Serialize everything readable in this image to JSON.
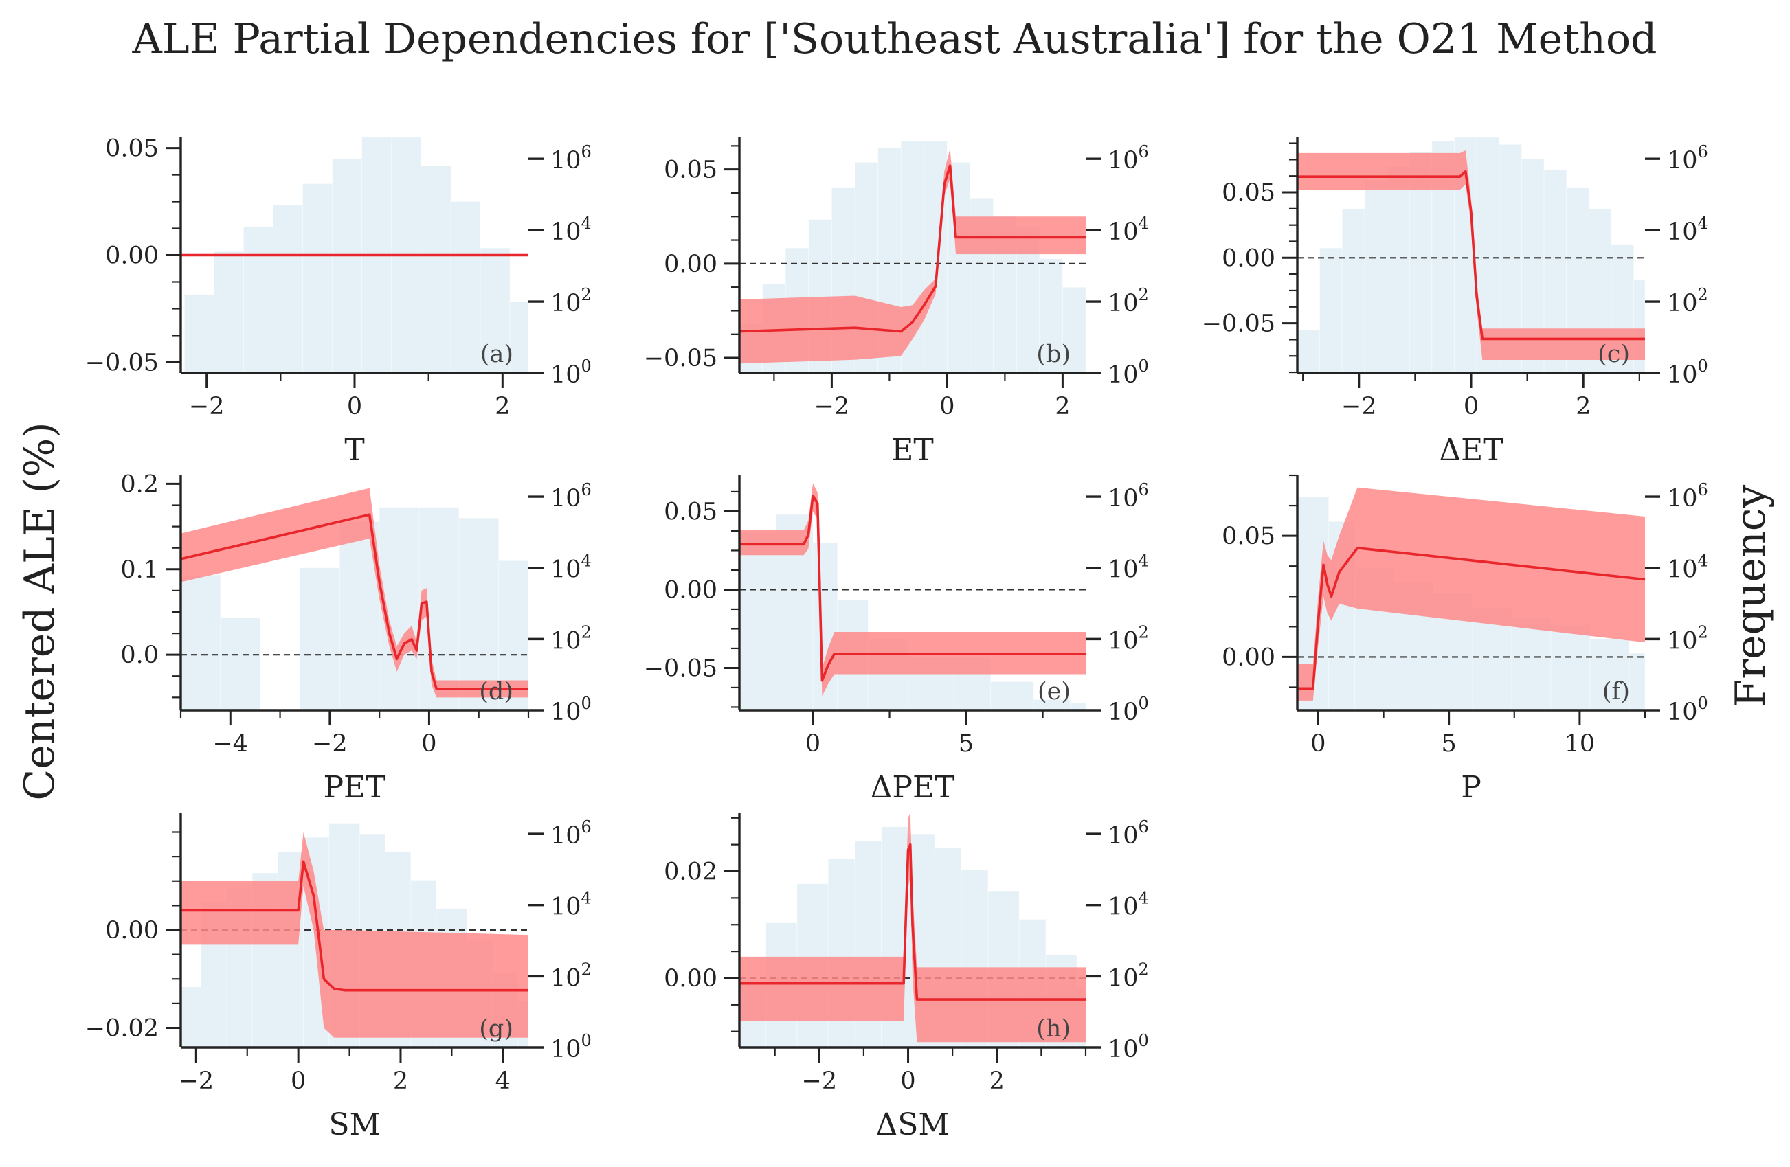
{
  "title": "ALE Partial Dependencies for ['Southeast Australia'] for the O21 Method",
  "ylabel": "Centered ALE (%)",
  "y2label": "Frequency",
  "colors": {
    "line": "#e8262b",
    "band": "#ff8a8a",
    "hist": "#d7eaf1",
    "dash": "#333333",
    "axis": "#222222"
  },
  "chart_data": [
    {
      "type": "line",
      "panel": "(a)",
      "xlabel": "T",
      "xlim": [
        -2.35,
        2.35
      ],
      "ylim": [
        -0.055,
        0.055
      ],
      "xticks": [
        -2,
        0,
        2
      ],
      "yticks": [
        -0.05,
        0.0,
        0.05
      ],
      "ytick_labels": [
        "−0.05",
        "0.00",
        "0.05"
      ],
      "x": [
        -2.35,
        2.35
      ],
      "y": [
        0.0,
        0.0
      ],
      "lower": [
        0.0,
        0.0
      ],
      "upper": [
        0.0,
        0.0
      ],
      "hist_edges": [
        -2.3,
        -1.9,
        -1.5,
        -1.1,
        -0.7,
        -0.3,
        0.1,
        0.5,
        0.9,
        1.3,
        1.7,
        2.1,
        2.35
      ],
      "hist_counts": [
        2.2,
        3.4,
        4.1,
        4.7,
        5.3,
        6.0,
        6.6,
        6.6,
        5.8,
        4.8,
        3.5,
        2.0
      ]
    },
    {
      "type": "line",
      "panel": "(b)",
      "xlabel": "ET",
      "xlim": [
        -3.6,
        2.4
      ],
      "ylim": [
        -0.058,
        0.067
      ],
      "xticks": [
        -2,
        0,
        2
      ],
      "yticks": [
        -0.05,
        0.0,
        0.05
      ],
      "ytick_labels": [
        "−0.05",
        "0.00",
        "0.05"
      ],
      "x": [
        -3.6,
        -1.6,
        -0.8,
        -0.6,
        -0.4,
        -0.2,
        -0.05,
        0.05,
        0.15,
        0.25,
        2.4
      ],
      "y": [
        -0.036,
        -0.034,
        -0.036,
        -0.031,
        -0.022,
        -0.012,
        0.042,
        0.052,
        0.014,
        0.014,
        0.014
      ],
      "lower": [
        -0.053,
        -0.051,
        -0.049,
        -0.04,
        -0.03,
        -0.016,
        0.036,
        0.045,
        0.005,
        0.005,
        0.005
      ],
      "upper": [
        -0.019,
        -0.017,
        -0.023,
        -0.022,
        -0.014,
        -0.008,
        0.049,
        0.061,
        0.025,
        0.025,
        0.025
      ],
      "hist_edges": [
        -3.6,
        -3.2,
        -2.8,
        -2.4,
        -2.0,
        -1.6,
        -1.2,
        -0.8,
        -0.4,
        0.0,
        0.4,
        0.8,
        1.2,
        1.6,
        2.0,
        2.4
      ],
      "hist_counts": [
        1.4,
        2.5,
        3.5,
        4.3,
        5.2,
        5.9,
        6.3,
        6.5,
        6.5,
        5.9,
        4.9,
        4.4,
        4.1,
        3.2,
        2.4
      ]
    },
    {
      "type": "line",
      "panel": "(c)",
      "xlabel": "ΔET",
      "xlim": [
        -3.1,
        3.1
      ],
      "ylim": [
        -0.088,
        0.092
      ],
      "xticks": [
        -2,
        0,
        2
      ],
      "yticks": [
        -0.05,
        0.0,
        0.05
      ],
      "ytick_labels": [
        "−0.05",
        "0.00",
        "0.05"
      ],
      "x": [
        -3.1,
        -0.2,
        -0.1,
        0.0,
        0.1,
        0.2,
        3.1
      ],
      "y": [
        0.062,
        0.062,
        0.066,
        0.035,
        -0.03,
        -0.062,
        -0.062
      ],
      "lower": [
        0.052,
        0.052,
        0.056,
        0.025,
        -0.04,
        -0.078,
        -0.078
      ],
      "upper": [
        0.08,
        0.08,
        0.082,
        0.045,
        -0.02,
        -0.054,
        -0.054
      ],
      "hist_edges": [
        -3.1,
        -2.7,
        -2.3,
        -1.9,
        -1.5,
        -1.1,
        -0.7,
        -0.3,
        0.1,
        0.5,
        0.9,
        1.3,
        1.7,
        2.1,
        2.5,
        2.9,
        3.1
      ],
      "hist_counts": [
        1.2,
        3.5,
        4.6,
        5.4,
        5.8,
        6.2,
        6.5,
        6.6,
        6.6,
        6.4,
        6.0,
        5.7,
        5.2,
        4.6,
        3.6,
        2.6
      ]
    },
    {
      "type": "line",
      "panel": "(d)",
      "xlabel": "PET",
      "xlim": [
        -5.0,
        2.0
      ],
      "ylim": [
        -0.065,
        0.21
      ],
      "xticks": [
        -4,
        -2,
        0
      ],
      "yticks": [
        0.0,
        0.1,
        0.2
      ],
      "ytick_labels": [
        "0.0",
        "0.1",
        "0.2"
      ],
      "x": [
        -5.0,
        -1.2,
        -1.0,
        -0.8,
        -0.65,
        -0.5,
        -0.35,
        -0.25,
        -0.15,
        -0.05,
        0.05,
        0.15,
        2.0
      ],
      "y": [
        0.112,
        0.164,
        0.085,
        0.025,
        -0.005,
        0.013,
        0.018,
        0.005,
        0.06,
        0.062,
        -0.02,
        -0.04,
        -0.04
      ],
      "lower": [
        0.085,
        0.136,
        0.065,
        0.01,
        -0.02,
        0.0,
        0.005,
        -0.005,
        0.04,
        0.045,
        -0.035,
        -0.05,
        -0.05
      ],
      "upper": [
        0.142,
        0.195,
        0.105,
        0.04,
        0.01,
        0.025,
        0.034,
        0.015,
        0.075,
        0.078,
        -0.005,
        -0.03,
        -0.03
      ],
      "hist_edges": [
        -5.0,
        -4.2,
        -3.4,
        -2.6,
        -1.8,
        -1.0,
        -0.2,
        0.6,
        1.4,
        2.0
      ],
      "hist_counts": [
        3.8,
        2.6,
        0,
        4.0,
        5.3,
        5.7,
        5.7,
        5.4,
        4.2
      ]
    },
    {
      "type": "line",
      "panel": "(e)",
      "xlabel": "ΔPET",
      "xlim": [
        -2.4,
        8.9
      ],
      "ylim": [
        -0.077,
        0.073
      ],
      "xticks": [
        0,
        5
      ],
      "yticks": [
        -0.05,
        0.0,
        0.05
      ],
      "ytick_labels": [
        "−0.05",
        "0.00",
        "0.05"
      ],
      "x": [
        -2.4,
        -0.3,
        -0.15,
        0.0,
        0.15,
        0.3,
        0.5,
        0.7,
        8.9
      ],
      "y": [
        0.029,
        0.029,
        0.035,
        0.06,
        0.055,
        -0.058,
        -0.048,
        -0.041,
        -0.041
      ],
      "lower": [
        0.022,
        0.022,
        0.026,
        0.05,
        0.045,
        -0.068,
        -0.06,
        -0.054,
        -0.054
      ],
      "upper": [
        0.038,
        0.038,
        0.044,
        0.068,
        0.062,
        -0.05,
        -0.037,
        -0.027,
        -0.027
      ],
      "hist_edges": [
        -2.4,
        -1.2,
        0.0,
        0.8,
        1.8,
        3.1,
        4.6,
        5.8,
        7.2,
        8.4,
        8.9
      ],
      "hist_counts": [
        5.0,
        5.5,
        4.7,
        3.1,
        2.0,
        1.5,
        1.5,
        0.8,
        0.3,
        0.2
      ]
    },
    {
      "type": "line",
      "panel": "(f)",
      "xlabel": "P",
      "xlim": [
        -0.8,
        12.5
      ],
      "ylim": [
        -0.022,
        0.075
      ],
      "xticks": [
        0,
        5,
        10
      ],
      "yticks": [
        0.0,
        0.05
      ],
      "ytick_labels": [
        "0.00",
        "0.05"
      ],
      "x": [
        -0.8,
        -0.2,
        0.0,
        0.2,
        0.35,
        0.5,
        0.8,
        1.5,
        12.5
      ],
      "y": [
        -0.013,
        -0.013,
        0.015,
        0.038,
        0.03,
        0.025,
        0.035,
        0.045,
        0.032
      ],
      "lower": [
        -0.018,
        -0.018,
        0.005,
        0.025,
        0.018,
        0.015,
        0.022,
        0.02,
        0.006
      ],
      "upper": [
        -0.003,
        -0.003,
        0.025,
        0.048,
        0.042,
        0.04,
        0.05,
        0.07,
        0.058
      ],
      "hist_edges": [
        -0.8,
        0.4,
        1.4,
        2.9,
        4.4,
        5.9,
        7.4,
        8.9,
        10.4,
        11.9,
        12.5
      ],
      "hist_counts": [
        6.0,
        5.3,
        4.0,
        3.6,
        3.3,
        2.9,
        2.6,
        2.4,
        2.0,
        1.6
      ]
    },
    {
      "type": "line",
      "panel": "(g)",
      "xlabel": "SM",
      "xlim": [
        -2.3,
        4.5
      ],
      "ylim": [
        -0.024,
        0.024
      ],
      "xticks": [
        -2,
        0,
        2,
        4
      ],
      "yticks": [
        -0.02,
        0.0
      ],
      "ytick_labels": [
        "−0.02",
        "0.00"
      ],
      "x": [
        -2.3,
        0.0,
        0.1,
        0.3,
        0.5,
        0.7,
        0.9,
        4.5
      ],
      "y": [
        0.004,
        0.004,
        0.014,
        0.007,
        -0.01,
        -0.012,
        -0.0123,
        -0.0123
      ],
      "lower": [
        -0.003,
        -0.003,
        0.009,
        0.0,
        -0.02,
        -0.022,
        -0.022,
        -0.022
      ],
      "upper": [
        0.01,
        0.01,
        0.02,
        0.012,
        0.0,
        0.0,
        0.0,
        -0.001
      ],
      "hist_edges": [
        -2.3,
        -1.9,
        -1.4,
        -0.9,
        -0.4,
        0.1,
        0.6,
        1.2,
        1.7,
        2.2,
        2.7,
        3.3,
        3.8,
        4.3,
        4.5
      ],
      "hist_counts": [
        1.7,
        4.1,
        4.5,
        4.9,
        5.5,
        5.9,
        6.3,
        6.0,
        5.5,
        4.7,
        3.9,
        3.0,
        2.1,
        1.3
      ]
    },
    {
      "type": "line",
      "panel": "(h)",
      "xlabel": "ΔSM",
      "xlim": [
        -3.8,
        4.0
      ],
      "ylim": [
        -0.013,
        0.031
      ],
      "xticks": [
        -2,
        0,
        2
      ],
      "yticks": [
        0.0,
        0.02
      ],
      "ytick_labels": [
        "0.00",
        "0.02"
      ],
      "x": [
        -3.8,
        -0.1,
        0.0,
        0.05,
        0.1,
        0.2,
        4.0
      ],
      "y": [
        -0.001,
        -0.001,
        0.024,
        0.025,
        0.01,
        -0.004,
        -0.004
      ],
      "lower": [
        -0.008,
        -0.008,
        0.017,
        0.019,
        0.0,
        -0.012,
        -0.012
      ],
      "upper": [
        0.004,
        0.004,
        0.03,
        0.031,
        0.016,
        0.002,
        0.002
      ],
      "hist_edges": [
        -3.8,
        -3.2,
        -2.5,
        -1.8,
        -1.2,
        -0.6,
        0.0,
        0.6,
        1.2,
        1.8,
        2.5,
        3.1,
        3.8,
        4.0
      ],
      "hist_counts": [
        1.8,
        3.5,
        4.6,
        5.3,
        5.8,
        6.2,
        6.0,
        5.6,
        5.0,
        4.4,
        3.6,
        2.6,
        1.7
      ]
    }
  ]
}
